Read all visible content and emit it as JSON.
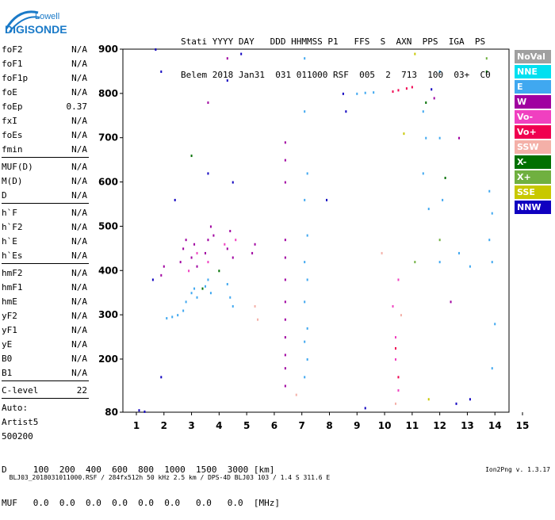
{
  "logo": {
    "top": "Lowell",
    "bottom": "DIGISONDE"
  },
  "header": {
    "labels": "Stati YYYY DAY   DDD HHMMSS P1   FFS  S  AXN  PPS  IGA  PS",
    "values": "Belem 2018 Jan31  031 011000 RSF  005  2  713  100  03+  C0"
  },
  "params": [
    {
      "name": "foF2",
      "value": "N/A"
    },
    {
      "name": "foF1",
      "value": "N/A"
    },
    {
      "name": "foF1p",
      "value": "N/A"
    },
    {
      "name": "foE",
      "value": "N/A"
    },
    {
      "name": "foEp",
      "value": "0.37"
    },
    {
      "name": "fxI",
      "value": "N/A"
    },
    {
      "name": "foEs",
      "value": "N/A"
    },
    {
      "name": "fmin",
      "value": "N/A"
    },
    {
      "name": "MUF(D)",
      "value": "N/A"
    },
    {
      "name": "M(D)",
      "value": "N/A"
    },
    {
      "name": "D",
      "value": "N/A"
    },
    {
      "name": "h`F",
      "value": "N/A"
    },
    {
      "name": "h`F2",
      "value": "N/A"
    },
    {
      "name": "h`E",
      "value": "N/A"
    },
    {
      "name": "h`Es",
      "value": "N/A"
    },
    {
      "name": "hmF2",
      "value": "N/A"
    },
    {
      "name": "hmF1",
      "value": "N/A"
    },
    {
      "name": "hmE",
      "value": "N/A"
    },
    {
      "name": "yF2",
      "value": "N/A"
    },
    {
      "name": "yF1",
      "value": "N/A"
    },
    {
      "name": "yE",
      "value": "N/A"
    },
    {
      "name": "B0",
      "value": "N/A"
    },
    {
      "name": "B1",
      "value": "N/A"
    },
    {
      "name": "C-level",
      "value": "22"
    },
    {
      "name": "Auto:",
      "value": ""
    },
    {
      "name": "Artist5",
      "value": ""
    },
    {
      "name": "500200",
      "value": ""
    }
  ],
  "legend": [
    {
      "label": "NoVal",
      "color": "#a0a0a0"
    },
    {
      "label": "NNE",
      "color": "#00e0f0"
    },
    {
      "label": "E",
      "color": "#40a8f0"
    },
    {
      "label": "W",
      "color": "#a000a0"
    },
    {
      "label": "Vo-",
      "color": "#f040c0"
    },
    {
      "label": "Vo+",
      "color": "#f00050"
    },
    {
      "label": "SSW",
      "color": "#f4b0a8"
    },
    {
      "label": "X-",
      "color": "#007000"
    },
    {
      "label": "X+",
      "color": "#70b040"
    },
    {
      "label": "SSE",
      "color": "#c8c800"
    },
    {
      "label": "NNW",
      "color": "#1000c0"
    }
  ],
  "footer": {
    "d_line": "D     100  200  400  600  800  1000  1500  3000 [km]",
    "muf_line": "MUF   0.0  0.0  0.0  0.0  0.0  0.0   0.0   0.0  [MHz]"
  },
  "bottom": {
    "left": "BLJ03_2018031011000.RSF / 284fx512h 50 kHz 2.5 km / DPS-4D BLJ03 103 / 1.4 S 311.6 E",
    "right": "Ion2Png v. 1.3.17"
  },
  "chart_data": {
    "type": "scatter",
    "title": "",
    "xlabel": "",
    "ylabel": "",
    "xlim": [
      1,
      15
    ],
    "ylim": [
      80,
      900
    ],
    "x_ticks": [
      1,
      2,
      3,
      4,
      5,
      6,
      7,
      8,
      9,
      10,
      11,
      12,
      13,
      14,
      15
    ],
    "y_ticks": [
      80,
      200,
      300,
      400,
      500,
      600,
      700,
      800,
      900
    ],
    "grid": false,
    "legend_position": "right",
    "series": [
      {
        "name": "E",
        "color": "#40a8f0",
        "points": [
          [
            2.1,
            293
          ],
          [
            2.3,
            296
          ],
          [
            2.5,
            300
          ],
          [
            2.7,
            310
          ],
          [
            2.8,
            330
          ],
          [
            3.0,
            350
          ],
          [
            3.1,
            360
          ],
          [
            3.2,
            340
          ],
          [
            3.5,
            365
          ],
          [
            3.6,
            380
          ],
          [
            3.7,
            350
          ],
          [
            4.3,
            370
          ],
          [
            4.4,
            340
          ],
          [
            4.5,
            320
          ],
          [
            7.1,
            880
          ],
          [
            7.1,
            760
          ],
          [
            7.2,
            620
          ],
          [
            7.1,
            560
          ],
          [
            7.2,
            480
          ],
          [
            7.1,
            420
          ],
          [
            7.2,
            380
          ],
          [
            7.1,
            330
          ],
          [
            7.2,
            270
          ],
          [
            7.1,
            240
          ],
          [
            7.2,
            200
          ],
          [
            7.1,
            160
          ],
          [
            9.0,
            800
          ],
          [
            9.3,
            802
          ],
          [
            9.6,
            803
          ],
          [
            11.4,
            760
          ],
          [
            11.5,
            700
          ],
          [
            11.4,
            620
          ],
          [
            11.6,
            540
          ],
          [
            12.0,
            850
          ],
          [
            12.0,
            700
          ],
          [
            12.1,
            560
          ],
          [
            12.0,
            420
          ],
          [
            13.8,
            580
          ],
          [
            13.9,
            530
          ],
          [
            13.8,
            470
          ],
          [
            13.9,
            420
          ],
          [
            14.0,
            280
          ],
          [
            13.9,
            180
          ],
          [
            12.7,
            440
          ],
          [
            13.1,
            410
          ]
        ]
      },
      {
        "name": "W",
        "color": "#a000a0",
        "points": [
          [
            1.9,
            390
          ],
          [
            2.0,
            410
          ],
          [
            2.6,
            420
          ],
          [
            2.7,
            450
          ],
          [
            2.8,
            470
          ],
          [
            3.0,
            430
          ],
          [
            3.1,
            460
          ],
          [
            3.2,
            410
          ],
          [
            3.5,
            440
          ],
          [
            3.6,
            470
          ],
          [
            3.7,
            500
          ],
          [
            3.8,
            480
          ],
          [
            4.3,
            450
          ],
          [
            4.4,
            490
          ],
          [
            4.5,
            430
          ],
          [
            5.2,
            440
          ],
          [
            5.3,
            460
          ],
          [
            6.4,
            690
          ],
          [
            6.4,
            650
          ],
          [
            6.4,
            600
          ],
          [
            6.4,
            470
          ],
          [
            6.4,
            430
          ],
          [
            6.4,
            380
          ],
          [
            6.4,
            330
          ],
          [
            6.4,
            290
          ],
          [
            6.4,
            250
          ],
          [
            6.4,
            210
          ],
          [
            6.4,
            180
          ],
          [
            6.4,
            140
          ],
          [
            4.3,
            880
          ],
          [
            3.6,
            780
          ],
          [
            12.4,
            330
          ],
          [
            12.7,
            700
          ],
          [
            11.8,
            790
          ]
        ]
      },
      {
        "name": "Vo-",
        "color": "#f040c0",
        "points": [
          [
            2.9,
            400
          ],
          [
            3.2,
            440
          ],
          [
            3.6,
            420
          ],
          [
            4.2,
            460
          ],
          [
            4.6,
            470
          ],
          [
            10.3,
            320
          ],
          [
            10.4,
            250
          ],
          [
            10.4,
            200
          ],
          [
            10.5,
            380
          ],
          [
            10.5,
            130
          ]
        ]
      },
      {
        "name": "Vo+",
        "color": "#f00050",
        "points": [
          [
            10.3,
            805
          ],
          [
            10.5,
            808
          ],
          [
            10.8,
            812
          ],
          [
            11.0,
            815
          ],
          [
            10.5,
            160
          ],
          [
            10.4,
            225
          ]
        ]
      },
      {
        "name": "SSW",
        "color": "#f4b0a8",
        "points": [
          [
            5.3,
            320
          ],
          [
            5.4,
            290
          ],
          [
            6.8,
            120
          ],
          [
            9.9,
            440
          ],
          [
            10.6,
            300
          ],
          [
            10.4,
            100
          ]
        ]
      },
      {
        "name": "X-",
        "color": "#007000",
        "points": [
          [
            3.0,
            660
          ],
          [
            3.4,
            360
          ],
          [
            4.0,
            400
          ],
          [
            12.2,
            610
          ],
          [
            13.7,
            850
          ],
          [
            11.5,
            780
          ]
        ]
      },
      {
        "name": "X+",
        "color": "#70b040",
        "points": [
          [
            11.1,
            420
          ],
          [
            12.0,
            470
          ],
          [
            13.7,
            880
          ]
        ]
      },
      {
        "name": "SSE",
        "color": "#c8c800",
        "points": [
          [
            11.6,
            110
          ],
          [
            11.1,
            890
          ],
          [
            10.7,
            710
          ]
        ]
      },
      {
        "name": "NNW",
        "color": "#1000c0",
        "points": [
          [
            1.6,
            380
          ],
          [
            1.9,
            160
          ],
          [
            1.1,
            85
          ],
          [
            1.3,
            82
          ],
          [
            3.6,
            620
          ],
          [
            4.3,
            830
          ],
          [
            4.5,
            600
          ],
          [
            7.9,
            560
          ],
          [
            8.5,
            800
          ],
          [
            9.3,
            90
          ],
          [
            11.7,
            810
          ],
          [
            12.6,
            100
          ],
          [
            13.1,
            110
          ],
          [
            1.9,
            850
          ],
          [
            1.7,
            900
          ],
          [
            4.8,
            890
          ],
          [
            2.4,
            560
          ],
          [
            8.6,
            760
          ]
        ]
      }
    ]
  }
}
